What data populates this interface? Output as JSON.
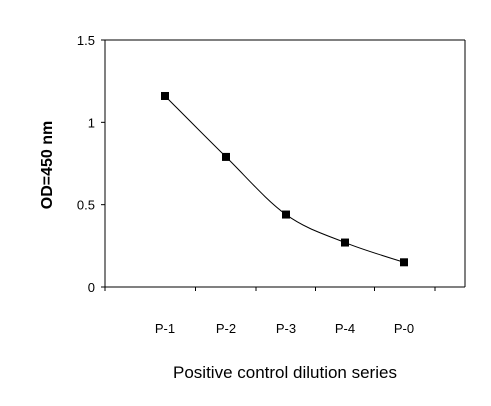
{
  "chart_data": {
    "type": "line",
    "categories": [
      "P-1",
      "P-2",
      "P-3",
      "P-4",
      "P-0"
    ],
    "series": [
      {
        "values": [
          1.16,
          0.79,
          0.44,
          0.27,
          0.15
        ]
      }
    ],
    "xlabel": "Positive control dilution series",
    "ylabel": "OD=450 nm",
    "ylim": [
      0,
      1.5
    ],
    "yticks": [
      "0",
      "0.5",
      "1",
      "1.5"
    ],
    "ytick_values": [
      0,
      0.5,
      1,
      1.5
    ],
    "marker": "square",
    "line_color": "#000000",
    "grid": false,
    "legend": "none"
  }
}
